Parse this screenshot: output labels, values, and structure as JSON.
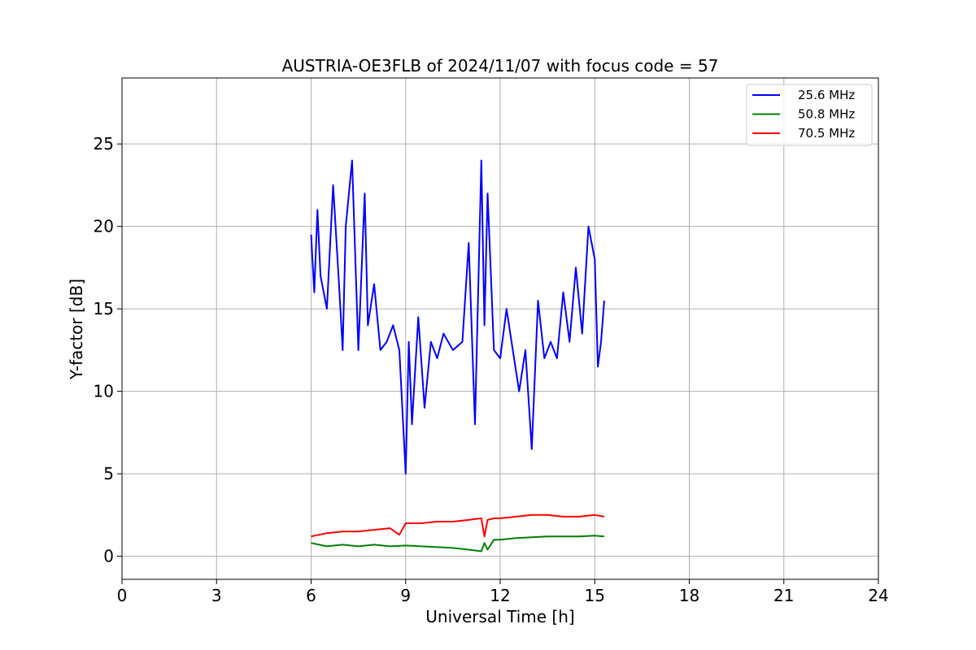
{
  "chart_data": {
    "type": "line",
    "title": "AUSTRIA-OE3FLB of 2024/11/07 with focus code = 57",
    "xlabel": "Universal Time [h]",
    "ylabel": "Y-factor [dB]",
    "xlim": [
      0,
      24
    ],
    "ylim": [
      -1.4,
      29
    ],
    "xticks": [
      0,
      3,
      6,
      9,
      12,
      15,
      18,
      21,
      24
    ],
    "xtick_labels": [
      "0",
      "3",
      "6",
      "9",
      "12",
      "15",
      "18",
      "21",
      "24"
    ],
    "yticks": [
      0,
      5,
      10,
      15,
      20,
      25
    ],
    "ytick_labels": [
      "0",
      "5",
      "10",
      "15",
      "20",
      "25"
    ],
    "grid": true,
    "legend_position": "top-right",
    "series": [
      {
        "name": "25.6 MHz",
        "color": "#0000ff",
        "x": [
          6.0,
          6.1,
          6.2,
          6.3,
          6.5,
          6.7,
          6.9,
          7.0,
          7.1,
          7.3,
          7.5,
          7.7,
          7.8,
          8.0,
          8.2,
          8.4,
          8.6,
          8.8,
          9.0,
          9.1,
          9.2,
          9.4,
          9.6,
          9.8,
          10.0,
          10.2,
          10.5,
          10.8,
          11.0,
          11.2,
          11.4,
          11.5,
          11.6,
          11.8,
          12.0,
          12.2,
          12.4,
          12.6,
          12.8,
          13.0,
          13.2,
          13.4,
          13.6,
          13.8,
          14.0,
          14.2,
          14.4,
          14.6,
          14.8,
          15.0,
          15.1,
          15.2,
          15.3
        ],
        "y": [
          19.5,
          16.0,
          21.0,
          17.0,
          15.0,
          22.5,
          16.0,
          12.5,
          20.0,
          24.0,
          12.5,
          22.0,
          14.0,
          16.5,
          12.5,
          13.0,
          14.0,
          12.5,
          5.0,
          13.0,
          8.0,
          14.5,
          9.0,
          13.0,
          12.0,
          13.5,
          12.5,
          13.0,
          19.0,
          8.0,
          24.0,
          14.0,
          22.0,
          12.5,
          12.0,
          15.0,
          12.5,
          10.0,
          12.5,
          6.5,
          15.5,
          12.0,
          13.0,
          12.0,
          16.0,
          13.0,
          17.5,
          13.5,
          20.0,
          18.0,
          11.5,
          13.0,
          15.5
        ]
      },
      {
        "name": "50.8 MHz",
        "color": "#008000",
        "x": [
          6.0,
          6.5,
          7.0,
          7.5,
          8.0,
          8.5,
          9.0,
          9.5,
          10.0,
          10.5,
          11.0,
          11.4,
          11.5,
          11.6,
          11.8,
          12.0,
          12.5,
          13.0,
          13.5,
          14.0,
          14.5,
          15.0,
          15.3
        ],
        "y": [
          0.8,
          0.6,
          0.7,
          0.6,
          0.7,
          0.6,
          0.65,
          0.6,
          0.55,
          0.5,
          0.4,
          0.3,
          0.8,
          0.4,
          1.0,
          1.0,
          1.1,
          1.15,
          1.2,
          1.2,
          1.2,
          1.25,
          1.2
        ]
      },
      {
        "name": "70.5 MHz",
        "color": "#ff0000",
        "x": [
          6.0,
          6.5,
          7.0,
          7.5,
          8.0,
          8.5,
          8.8,
          9.0,
          9.5,
          10.0,
          10.5,
          11.0,
          11.4,
          11.5,
          11.6,
          11.8,
          12.0,
          12.5,
          13.0,
          13.5,
          14.0,
          14.5,
          15.0,
          15.3
        ],
        "y": [
          1.2,
          1.4,
          1.5,
          1.5,
          1.6,
          1.7,
          1.3,
          2.0,
          2.0,
          2.1,
          2.1,
          2.2,
          2.3,
          1.2,
          2.2,
          2.3,
          2.3,
          2.4,
          2.5,
          2.5,
          2.4,
          2.4,
          2.5,
          2.4
        ]
      }
    ]
  }
}
